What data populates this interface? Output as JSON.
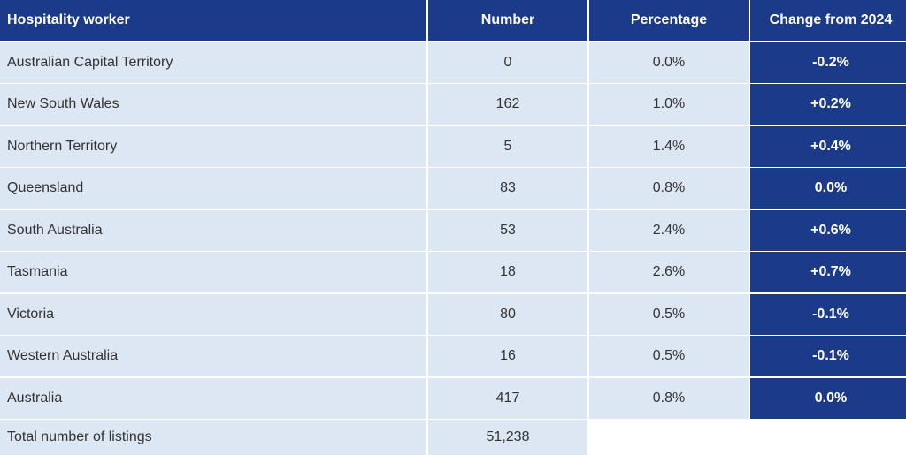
{
  "table": {
    "headers": [
      "Hospitality worker",
      "Number",
      "Percentage",
      "Change from 2024"
    ],
    "rows": [
      {
        "region": "Australian Capital Territory",
        "number": "0",
        "percentage": "0.0%",
        "change": "-0.2%"
      },
      {
        "region": "New South Wales",
        "number": "162",
        "percentage": "1.0%",
        "change": "+0.2%"
      },
      {
        "region": "Northern Territory",
        "number": "5",
        "percentage": "1.4%",
        "change": "+0.4%"
      },
      {
        "region": "Queensland",
        "number": "83",
        "percentage": "0.8%",
        "change": "0.0%"
      },
      {
        "region": "South Australia",
        "number": "53",
        "percentage": "2.4%",
        "change": "+0.6%"
      },
      {
        "region": "Tasmania",
        "number": "18",
        "percentage": "2.6%",
        "change": "+0.7%"
      },
      {
        "region": "Victoria",
        "number": "80",
        "percentage": "0.5%",
        "change": "-0.1%"
      },
      {
        "region": "Western Australia",
        "number": "16",
        "percentage": "0.5%",
        "change": "-0.1%"
      },
      {
        "region": "Australia",
        "number": "417",
        "percentage": "0.8%",
        "change": "0.0%"
      }
    ],
    "total": {
      "label": "Total number of listings",
      "number": "51,238"
    }
  },
  "colors": {
    "header_bg": "#1b3a8a",
    "row_bg": "#dde7f3",
    "change_bg": "#1b3a8a"
  }
}
